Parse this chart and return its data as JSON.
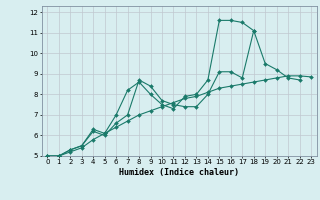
{
  "title": "",
  "xlabel": "Humidex (Indice chaleur)",
  "ylabel": "",
  "bg_color": "#d8eef0",
  "grid_color": "#c0c8d0",
  "line_color": "#1a7a6a",
  "xlim": [
    -0.5,
    23.5
  ],
  "ylim": [
    5,
    12.3
  ],
  "yticks": [
    5,
    6,
    7,
    8,
    9,
    10,
    11,
    12
  ],
  "xticks": [
    0,
    1,
    2,
    3,
    4,
    5,
    6,
    7,
    8,
    9,
    10,
    11,
    12,
    13,
    14,
    15,
    16,
    17,
    18,
    19,
    20,
    21,
    22,
    23
  ],
  "series": [
    {
      "x": [
        0,
        1,
        2,
        3,
        4,
        5,
        6,
        7,
        8,
        9,
        10,
        11,
        12,
        13,
        14,
        15,
        16,
        17,
        18,
        19,
        20,
        21,
        22
      ],
      "y": [
        5.0,
        5.0,
        5.3,
        5.5,
        6.2,
        6.0,
        6.6,
        7.0,
        8.7,
        8.4,
        7.7,
        7.5,
        7.4,
        7.4,
        8.0,
        9.1,
        9.1,
        8.8,
        11.1,
        9.5,
        9.2,
        8.8,
        8.7
      ]
    },
    {
      "x": [
        0,
        1,
        2,
        3,
        4,
        5,
        6,
        7,
        8,
        9,
        10,
        11,
        12,
        13,
        14,
        15,
        16,
        17,
        18
      ],
      "y": [
        5.0,
        5.0,
        5.3,
        5.5,
        6.3,
        6.1,
        7.0,
        8.2,
        8.6,
        8.0,
        7.5,
        7.3,
        7.9,
        8.0,
        8.7,
        11.6,
        11.6,
        11.5,
        11.1
      ]
    },
    {
      "x": [
        0,
        1,
        2,
        3,
        4,
        5,
        6,
        7,
        8,
        9,
        10,
        11,
        12,
        13,
        14,
        15,
        16,
        17,
        18,
        19,
        20,
        21,
        22,
        23
      ],
      "y": [
        5.0,
        5.0,
        5.2,
        5.4,
        5.8,
        6.1,
        6.4,
        6.7,
        7.0,
        7.2,
        7.4,
        7.6,
        7.8,
        7.9,
        8.1,
        8.3,
        8.4,
        8.5,
        8.6,
        8.7,
        8.8,
        8.9,
        8.9,
        8.85
      ]
    }
  ]
}
